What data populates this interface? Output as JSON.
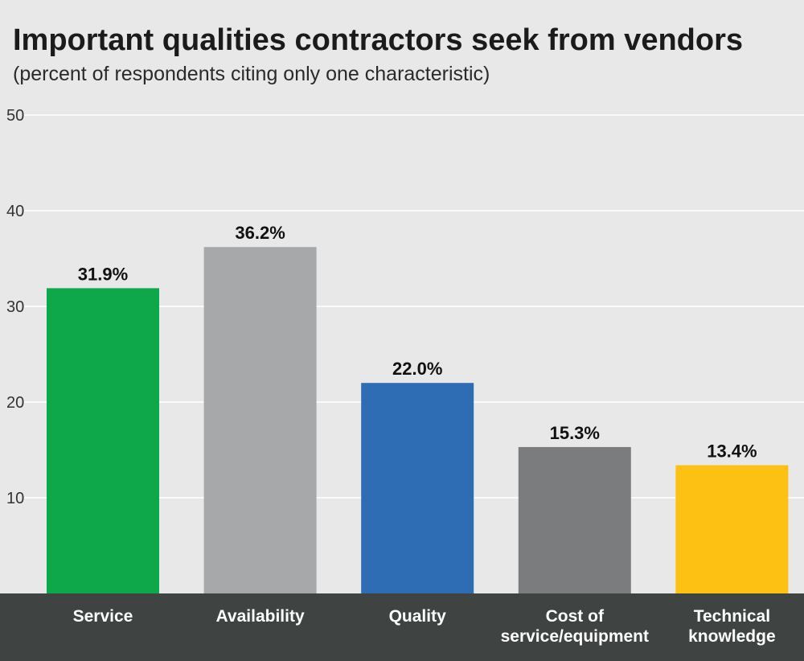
{
  "chart_data": {
    "type": "bar",
    "title": "Important qualities contractors seek from vendors",
    "subtitle": "(percent of respondents citing only one characteristic)",
    "categories": [
      "Service",
      "Availability",
      "Quality",
      "Cost of\nservice/equipment",
      "Technical\nknowledge"
    ],
    "values": [
      31.9,
      36.2,
      22.0,
      15.3,
      13.4
    ],
    "value_labels": [
      "31.9%",
      "36.2%",
      "22.0%",
      "15.3%",
      "13.4%"
    ],
    "colors": [
      "#0ea84b",
      "#a7a8aa",
      "#2e6db4",
      "#7b7c7e",
      "#fdc114"
    ],
    "xlabel": "",
    "ylabel": "",
    "ylim": [
      0,
      50
    ],
    "yticks": [
      10,
      20,
      30,
      40,
      50
    ],
    "grid": true,
    "legend": "none",
    "axis_band_color": "#3f4442",
    "background_color": "#e8e8e9"
  }
}
